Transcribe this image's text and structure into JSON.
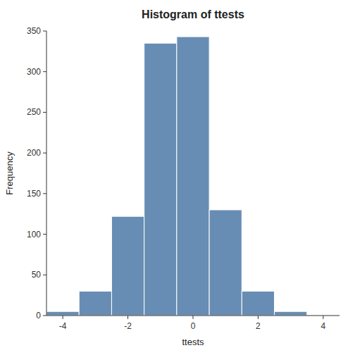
{
  "chart_data": {
    "type": "histogram",
    "title": "Histogram of ttests",
    "xlabel": "ttests",
    "ylabel": "Frequency",
    "bins": [
      -4.5,
      -3.5,
      -2.5,
      -1.5,
      -0.5,
      0.5,
      1.5,
      2.5,
      3.5,
      4.5
    ],
    "values": [
      5,
      30,
      122,
      335,
      343,
      130,
      30,
      5,
      0
    ],
    "xlim": [
      -4.5,
      4.5
    ],
    "ylim": [
      0,
      350
    ],
    "xticks": [
      -4,
      -2,
      0,
      2,
      4
    ],
    "yticks": [
      0,
      50,
      100,
      150,
      200,
      250,
      300,
      350
    ]
  }
}
